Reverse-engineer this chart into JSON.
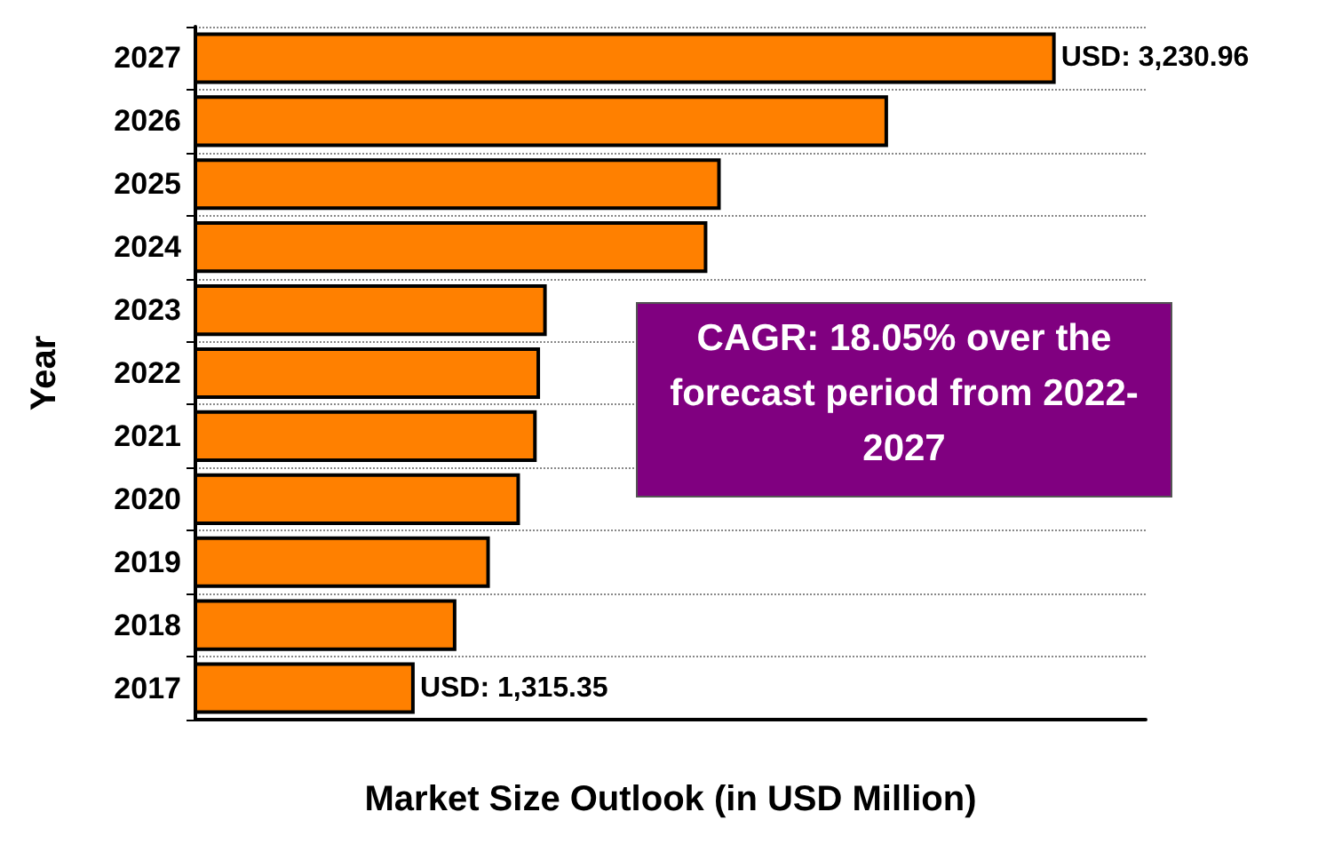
{
  "chart_data": {
    "type": "bar",
    "orientation": "horizontal",
    "xlabel": "Market Size Outlook (in USD Million)",
    "ylabel": "Year",
    "categories": [
      "2027",
      "2026",
      "2025",
      "2024",
      "2023",
      "2022",
      "2021",
      "2020",
      "2019",
      "2018",
      "2017"
    ],
    "values": [
      3230.96,
      2730,
      2230,
      2190,
      1710,
      1690,
      1680,
      1630,
      1540,
      1440,
      1315.35
    ],
    "value_labels": [
      "USD: 3,230.96",
      null,
      null,
      null,
      null,
      null,
      null,
      null,
      null,
      null,
      "USD: 1,315.35"
    ],
    "color": "#ff8000",
    "xlim": [
      660,
      3500
    ],
    "grid": "y",
    "tick_labels": "y",
    "annotations": [
      "CAGR: 18.05% over the forecast period from 2022-2027"
    ]
  }
}
